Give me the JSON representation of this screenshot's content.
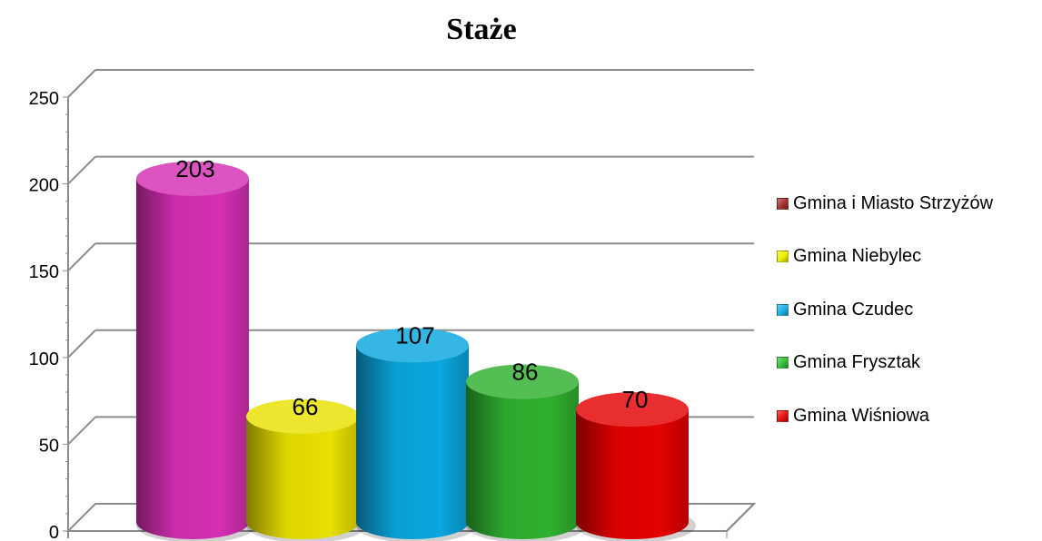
{
  "chart_data": {
    "type": "bar",
    "title": "Staże",
    "xlabel": "",
    "ylabel": "",
    "ylim": [
      0,
      250
    ],
    "ytick_step": 50,
    "grid": true,
    "legend_position": "right",
    "categories": [
      "Gmina i Miasto Strzyżów",
      "Gmina Niebylec",
      "Gmina Czudec",
      "Gmina Frysztak",
      "Gmina Wiśniowa"
    ],
    "series": [
      {
        "name": "Gmina i Miasto Strzyżów",
        "value": 203,
        "color": "#d42fb3",
        "legend_color": "#a33333"
      },
      {
        "name": "Gmina Niebylec",
        "value": 66,
        "color": "#e8e000",
        "legend_color": "#f0f000"
      },
      {
        "name": "Gmina Czudec",
        "value": 107,
        "color": "#0aa6de",
        "legend_color": "#1ab0e6"
      },
      {
        "name": "Gmina Frysztak",
        "value": 86,
        "color": "#2fb02f",
        "legend_color": "#38c038"
      },
      {
        "name": "Gmina Wiśniowa",
        "value": 70,
        "color": "#e30000",
        "legend_color": "#e81010"
      }
    ]
  }
}
